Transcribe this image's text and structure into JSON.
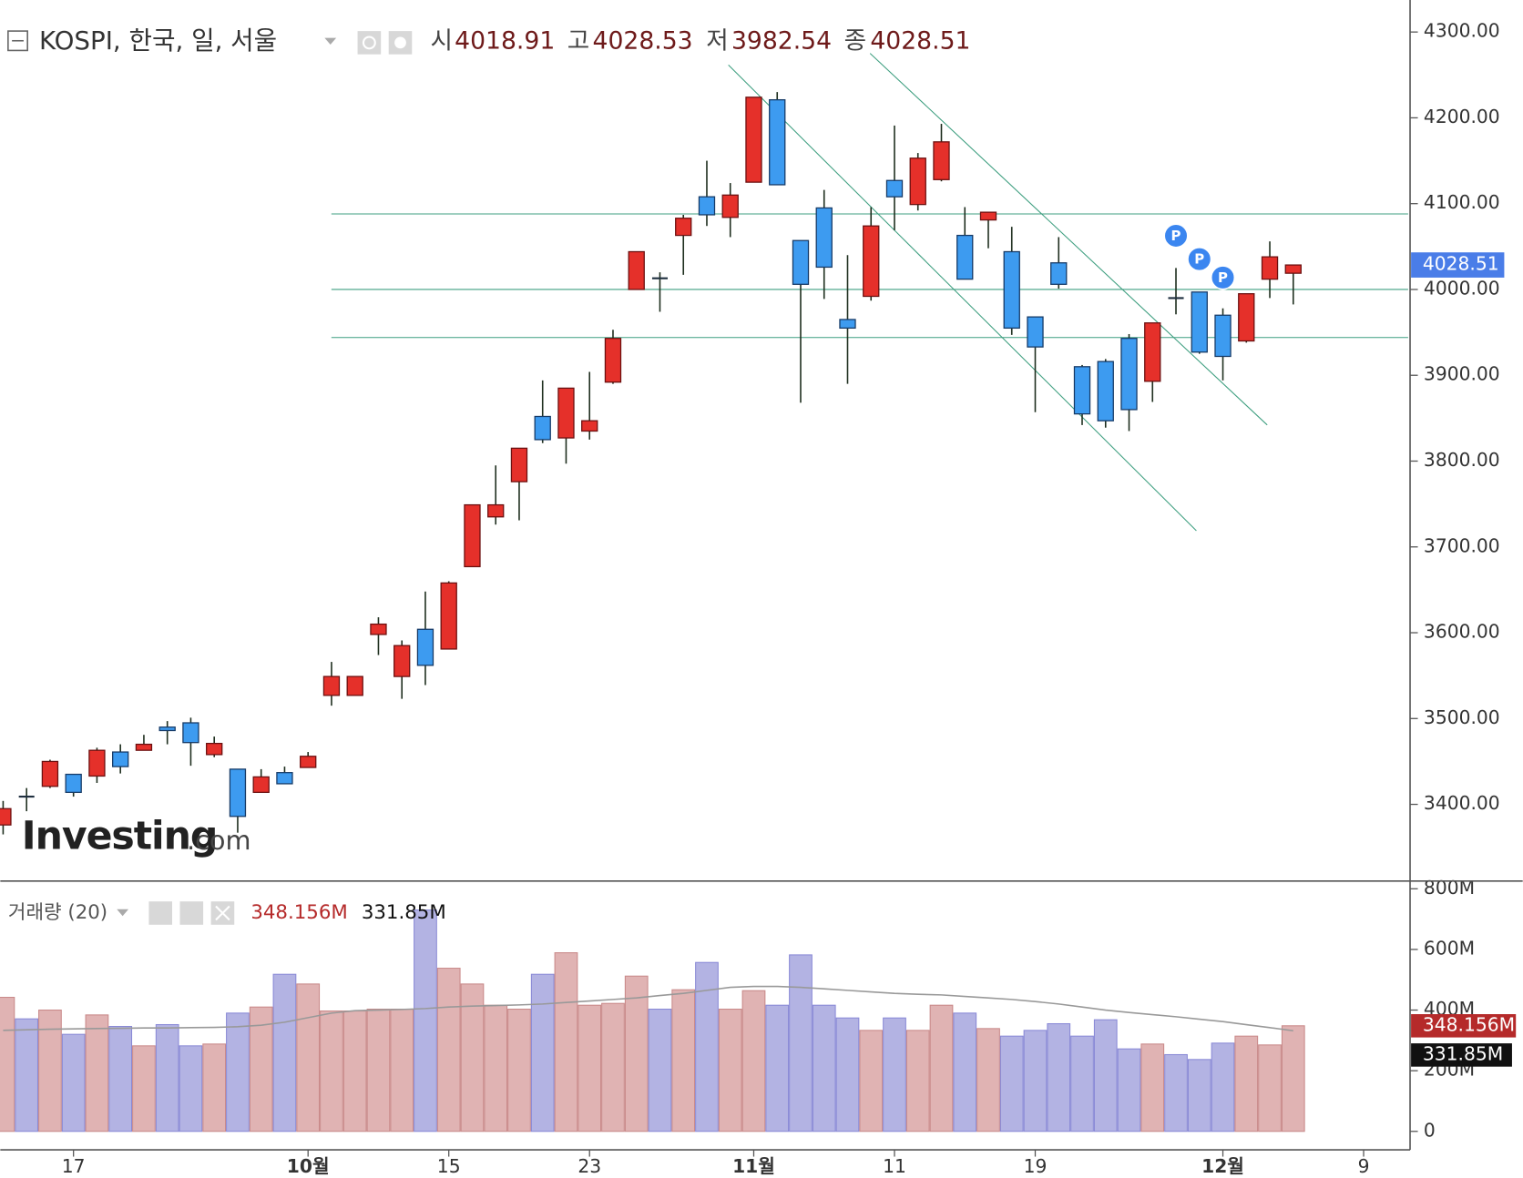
{
  "chart_data": {
    "type": "candlestick",
    "title": "KOSPI, 한국, 일, 서울",
    "header_labels": [
      "시",
      "고",
      "저",
      "종"
    ],
    "watermark": {
      "brand": "Investing",
      "suffix": ".com"
    },
    "up_color": "#e5302a",
    "down_color": "#3d9bf0",
    "xlim": [
      -0.12,
      59.98
    ],
    "xticks": [
      {
        "value": 3,
        "label": "17"
      },
      {
        "value": 13,
        "label": "10월"
      },
      {
        "value": 19,
        "label": "15"
      },
      {
        "value": 25,
        "label": "23"
      },
      {
        "value": 32,
        "label": "11월"
      },
      {
        "value": 38,
        "label": "11"
      },
      {
        "value": 44,
        "label": "19"
      },
      {
        "value": 52,
        "label": "12월"
      },
      {
        "value": 58,
        "label": "9"
      }
    ],
    "ylim": [
      3310.6,
      4337.3
    ],
    "yticks": [
      {
        "value": 3400,
        "label": "3400.00"
      },
      {
        "value": 3500,
        "label": "3500.00"
      },
      {
        "value": 3600,
        "label": "3600.00"
      },
      {
        "value": 3700,
        "label": "3700.00"
      },
      {
        "value": 3800,
        "label": "3800.00"
      },
      {
        "value": 3900,
        "label": "3900.00"
      },
      {
        "value": 4000,
        "label": "4000.00"
      },
      {
        "value": 4100,
        "label": "4100.00"
      },
      {
        "value": 4200,
        "label": "4200.00"
      },
      {
        "value": 4300,
        "label": "4300.00"
      }
    ],
    "open": [
      3376,
      3409,
      3421,
      3435,
      3433,
      3461,
      3463,
      3490,
      3495,
      3458,
      3441,
      3414,
      3437,
      3443,
      3527,
      3527,
      3598,
      3549,
      3604,
      3581,
      3677,
      3735,
      3776,
      3852,
      3827,
      3835,
      3892,
      4000,
      4013,
      4063,
      4108,
      4084,
      4125,
      4221,
      4057,
      4095,
      3965,
      3992,
      4127,
      4099,
      4128,
      4063,
      4081,
      4044,
      3968,
      4031,
      3910,
      3916,
      3943,
      3893,
      3990,
      3997,
      3970,
      3940,
      4012,
      4018.91
    ],
    "high": [
      3404,
      3419,
      3452,
      3435,
      3466,
      3470,
      3481,
      3497,
      3501,
      3479,
      3441,
      3441,
      3444,
      3461,
      3566,
      3549,
      3618,
      3591,
      3648,
      3660,
      3749,
      3795,
      3815,
      3894,
      3885,
      3904,
      3953,
      4044,
      4020,
      4087,
      4150,
      4124,
      4224,
      4230,
      4057,
      4116,
      4040,
      4096,
      4191,
      4159,
      4193,
      4096,
      4090,
      4073,
      3968,
      4061,
      3912,
      3919,
      3948,
      3961,
      4025,
      3997,
      3978,
      3995,
      4056,
      4028.53
    ],
    "low": [
      3365,
      3392,
      3419,
      3409,
      3425,
      3436,
      3463,
      3470,
      3445,
      3455,
      3367,
      3414,
      3424,
      3443,
      3515,
      3527,
      3574,
      3523,
      3539,
      3581,
      3677,
      3726,
      3731,
      3821,
      3797,
      3825,
      3890,
      4000,
      3974,
      4017,
      4074,
      4061,
      4125,
      4122,
      3868,
      3989,
      3890,
      3987,
      4069,
      4092,
      4126,
      4012,
      4048,
      3947,
      3857,
      4001,
      3842,
      3839,
      3835,
      3869,
      3971,
      3925,
      3894,
      3938,
      3990,
      3982.54
    ],
    "close": [
      3395,
      3409,
      3450,
      3414,
      3463,
      3444,
      3470,
      3486,
      3472,
      3471,
      3386,
      3432,
      3424,
      3456,
      3549,
      3549,
      3610,
      3585,
      3562,
      3658,
      3749,
      3749,
      3815,
      3825,
      3885,
      3847,
      3943,
      4044,
      4013,
      4083,
      4087,
      4110,
      4224,
      4122,
      4006,
      4026,
      3955,
      4074,
      4108,
      4153,
      4172,
      4012,
      4090,
      3955,
      3933,
      4006,
      3855,
      3847,
      3860,
      3961,
      3990,
      3927,
      3922,
      3995,
      4038,
      4028.51
    ],
    "hlines": [
      4088,
      4000,
      3944
    ],
    "trendlines": [
      {
        "x": [
          30.92,
          50.87
        ],
        "y": [
          4261.6,
          3718.8
        ]
      },
      {
        "x": [
          36.96,
          53.89
        ],
        "y": [
          4275.1,
          3842.1
        ]
      }
    ],
    "markers": [
      {
        "label": "P",
        "x": 50,
        "y": 4062.6
      },
      {
        "label": "P",
        "x": 51,
        "y": 4035.4
      },
      {
        "label": "P",
        "x": 52,
        "y": 4013.9
      }
    ],
    "volume": {
      "name": "거래량 (20)",
      "up_color": "#e0b3b3",
      "down_color": "#b3b3e3",
      "ylim": [
        -61,
        819
      ],
      "yticks": [
        0,
        {
          "value": 200,
          "label": "200M"
        },
        {
          "value": 400,
          "label": "400M"
        },
        {
          "value": 600,
          "label": "600M"
        },
        {
          "value": 800,
          "label": "800M"
        }
      ],
      "values": [
        442,
        371,
        400,
        320,
        384,
        346,
        282,
        352,
        282,
        288,
        390,
        410,
        518,
        486,
        397,
        397,
        403,
        403,
        730,
        538,
        486,
        416,
        403,
        518,
        589,
        416,
        422,
        512,
        403,
        467,
        557,
        403,
        464,
        416,
        582,
        416,
        374,
        333,
        374,
        333,
        416,
        390,
        339,
        314,
        333,
        355,
        314,
        368,
        272,
        288,
        253,
        237,
        291,
        314,
        285,
        348.156
      ],
      "last_value_label": "348.156M",
      "ma_color": "#999999",
      "ma_values": [
        333,
        335,
        337,
        338,
        339,
        340,
        341,
        341,
        342,
        343,
        345,
        350,
        360,
        375,
        390,
        398,
        400,
        402,
        405,
        410,
        413,
        415,
        417,
        420,
        425,
        430,
        435,
        440,
        448,
        455,
        465,
        475,
        478,
        478,
        475,
        470,
        465,
        460,
        455,
        452,
        450,
        445,
        440,
        435,
        428,
        420,
        410,
        400,
        392,
        385,
        378,
        370,
        362,
        352,
        342,
        331.85
      ],
      "ma_last_value_label": "331.85M"
    }
  }
}
